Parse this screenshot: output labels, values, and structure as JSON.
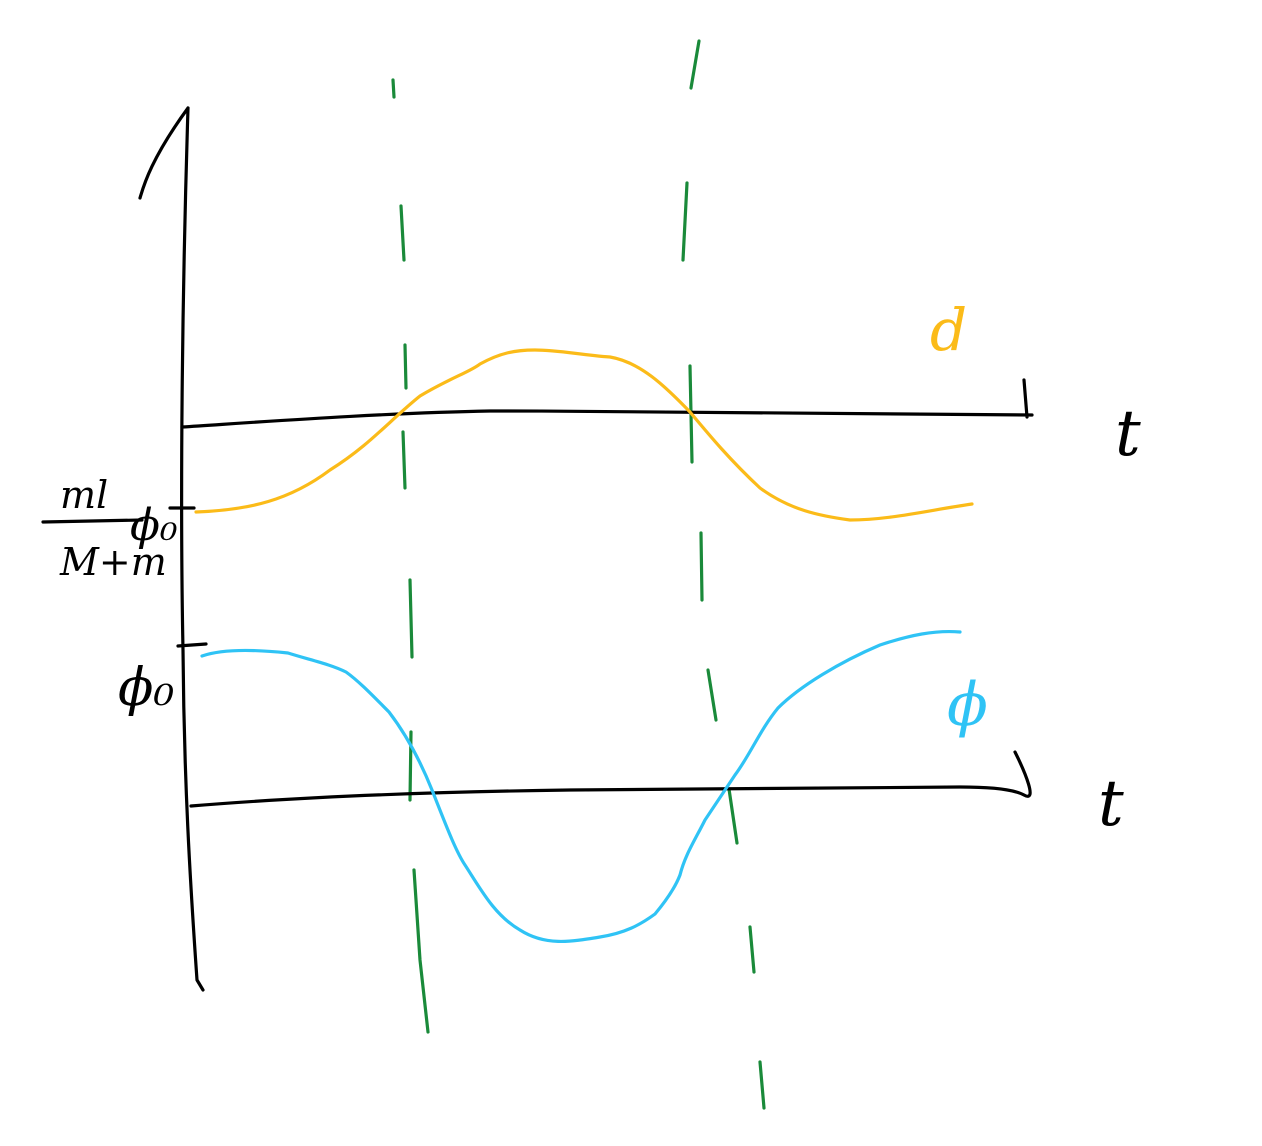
{
  "labels": {
    "time_top": "t",
    "time_bottom": "t",
    "curve_top": "d",
    "curve_bottom": "ϕ",
    "frac_num": "ml",
    "frac_den": "M+m",
    "phi0_top": "ϕ₀",
    "phi0_bottom": "ϕ₀"
  },
  "colors": {
    "axes": "#000000",
    "guides": "#1a8a3a",
    "d_curve": "#fbbb19",
    "phi_curve": "#2fc3f5"
  }
}
